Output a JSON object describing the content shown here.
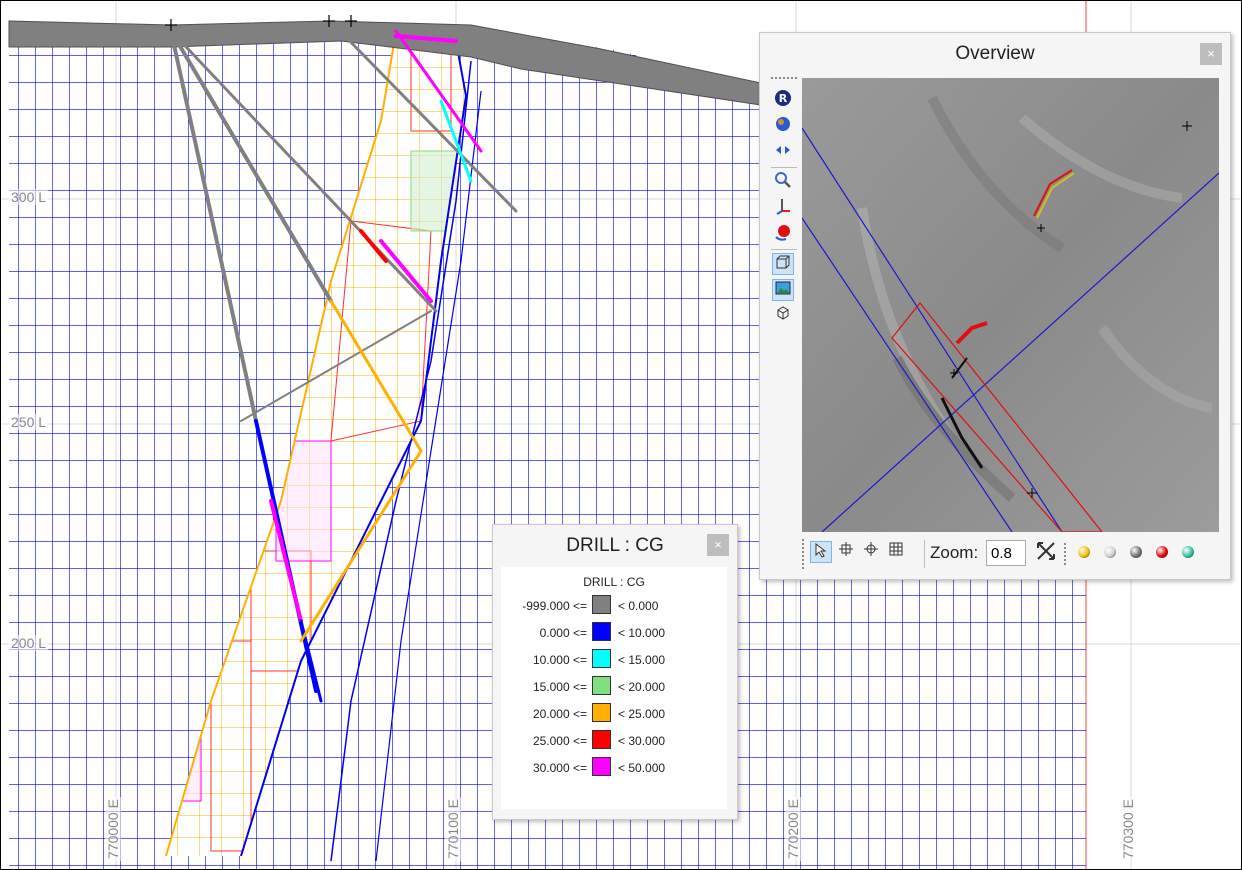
{
  "section_view": {
    "elevation_labels": [
      "300 L",
      "250 L",
      "200 L"
    ],
    "easting_labels": [
      "770000 E",
      "770100 E",
      "770200 E",
      "770300 E"
    ]
  },
  "legend_window": {
    "title": "DRILL : CG",
    "subtitle": "DRILL : CG",
    "close_label": "×",
    "rows": [
      {
        "low": "-999.000 <=",
        "high": "< 0.000",
        "color": "#808080"
      },
      {
        "low": "0.000 <=",
        "high": "< 10.000",
        "color": "#0000ff"
      },
      {
        "low": "10.000 <=",
        "high": "< 15.000",
        "color": "#00ffff"
      },
      {
        "low": "15.000 <=",
        "high": "< 20.000",
        "color": "#80e080"
      },
      {
        "low": "20.000 <=",
        "high": "< 25.000",
        "color": "#ffb000"
      },
      {
        "low": "25.000 <=",
        "high": "< 30.000",
        "color": "#ff0000"
      },
      {
        "low": "30.000 <=",
        "high": "< 50.000",
        "color": "#ff00ff"
      }
    ]
  },
  "overview_window": {
    "title": "Overview",
    "close_label": "×",
    "side_tools": [
      "reset-view-icon",
      "globe-icon",
      "pan-arrows-icon",
      "zoom-magnifier-icon",
      "axis-icon",
      "rotate-sphere-icon",
      "box-icon",
      "image-icon",
      "cube-icon"
    ],
    "bottom_tools": [
      "select-arrow-icon",
      "crosshair-icon",
      "target-icon",
      "grid-icon"
    ],
    "zoom_label": "Zoom:",
    "zoom_value": "0.8",
    "status_balls": [
      "#f0c000",
      "#d0d0d0",
      "#707070",
      "#e00000",
      "#30c0a0"
    ]
  },
  "colors": {
    "grid_blue": "#0000ee",
    "block_orange": "#ffb000",
    "block_red": "#ff0000",
    "block_pink": "#ff00ff",
    "block_green": "#80e080"
  }
}
